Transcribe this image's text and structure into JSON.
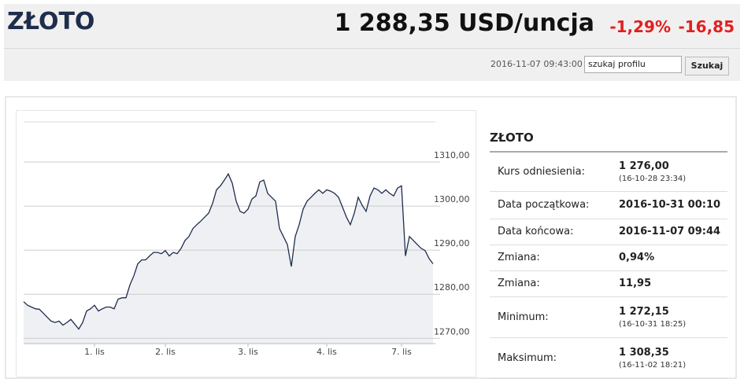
{
  "header": {
    "title": "ZŁOTO",
    "price": "1 288,35 USD/uncja",
    "change_pct": "-1,29%",
    "change_abs": "-16,85",
    "timestamp": "2016-11-07 09:43:00",
    "search_input": "szukaj profilu",
    "search_button": "Szukaj"
  },
  "chart_data": {
    "type": "line",
    "color": "#1f2d4d",
    "area_color": "#eef0f4",
    "categories": [
      null,
      null,
      null,
      null,
      null,
      null,
      null,
      null,
      null,
      null,
      null,
      null,
      null,
      null,
      null,
      null,
      null,
      null,
      "1. lis",
      null,
      null,
      null,
      null,
      null,
      null,
      null,
      null,
      null,
      null,
      null,
      null,
      null,
      null,
      null,
      null,
      null,
      "2. lis",
      null,
      null,
      null,
      null,
      null,
      null,
      null,
      null,
      null,
      null,
      null,
      null,
      null,
      null,
      null,
      null,
      null,
      null,
      null,
      null,
      "3. lis",
      null,
      null,
      null,
      null,
      null,
      null,
      null,
      null,
      null,
      null,
      null,
      null,
      null,
      null,
      null,
      null,
      null,
      null,
      null,
      "4. lis",
      null,
      null,
      null,
      null,
      null,
      null,
      null,
      null,
      null,
      null,
      null,
      null,
      null,
      null,
      null,
      null,
      null,
      null,
      "7. lis",
      null,
      null,
      null,
      null,
      null,
      null,
      null,
      null
    ],
    "values": [
      1278.3,
      1277.5,
      1277.1,
      1276.7,
      1276.6,
      1275.7,
      1274.8,
      1273.9,
      1273.6,
      1273.9,
      1273.0,
      1273.6,
      1274.3,
      1273.2,
      1272.1,
      1273.6,
      1276.2,
      1276.7,
      1277.5,
      1276.2,
      1276.7,
      1277.1,
      1277.1,
      1276.7,
      1278.9,
      1279.2,
      1279.2,
      1282.1,
      1284.2,
      1286.9,
      1287.8,
      1287.8,
      1288.7,
      1289.5,
      1289.5,
      1289.2,
      1289.9,
      1288.7,
      1289.5,
      1289.2,
      1290.4,
      1292.2,
      1293.1,
      1294.9,
      1295.8,
      1296.6,
      1297.5,
      1298.4,
      1300.6,
      1303.7,
      1304.6,
      1305.9,
      1307.3,
      1305.2,
      1301.1,
      1298.8,
      1298.4,
      1299.3,
      1301.6,
      1302.3,
      1305.5,
      1305.9,
      1302.9,
      1302.0,
      1301.1,
      1294.9,
      1293.1,
      1291.3,
      1286.3,
      1293.1,
      1295.8,
      1299.3,
      1301.1,
      1302.0,
      1302.9,
      1303.7,
      1302.9,
      1303.7,
      1303.4,
      1302.9,
      1302.0,
      1299.8,
      1297.5,
      1295.8,
      1298.4,
      1302.0,
      1300.2,
      1298.8,
      1302.3,
      1304.1,
      1303.7,
      1302.9,
      1303.7,
      1302.9,
      1302.3,
      1304.1,
      1304.6,
      1288.7,
      1293.1,
      1292.2,
      1291.3,
      1290.4,
      1289.9,
      1288.1,
      1286.9
    ],
    "ylim": [
      1268.8,
      1320
    ],
    "yticks": [
      {
        "value": 1270,
        "label": "1270,00"
      },
      {
        "value": 1280,
        "label": "1280,00"
      },
      {
        "value": 1290,
        "label": "1290,00"
      },
      {
        "value": 1300,
        "label": "1300,00"
      },
      {
        "value": 1310,
        "label": "1310,00"
      }
    ],
    "grid": true
  },
  "table": {
    "title": "ZŁOTO",
    "rows": [
      [
        "Kurs odniesienia:",
        "1 276,00",
        "(16-10-28 23:34)"
      ],
      [
        "Data początkowa:",
        "2016-10-31 00:10"
      ],
      [
        "Data końcowa:",
        "2016-11-07 09:44"
      ],
      [
        "Zmiana:",
        "0,94%"
      ],
      [
        "Zmiana:",
        "11,95"
      ],
      [
        "Minimum:",
        "1 272,15",
        "(16-10-31 18:25)"
      ],
      [
        "Maksimum:",
        "1 308,35",
        "(16-11-02 18:21)"
      ]
    ]
  }
}
